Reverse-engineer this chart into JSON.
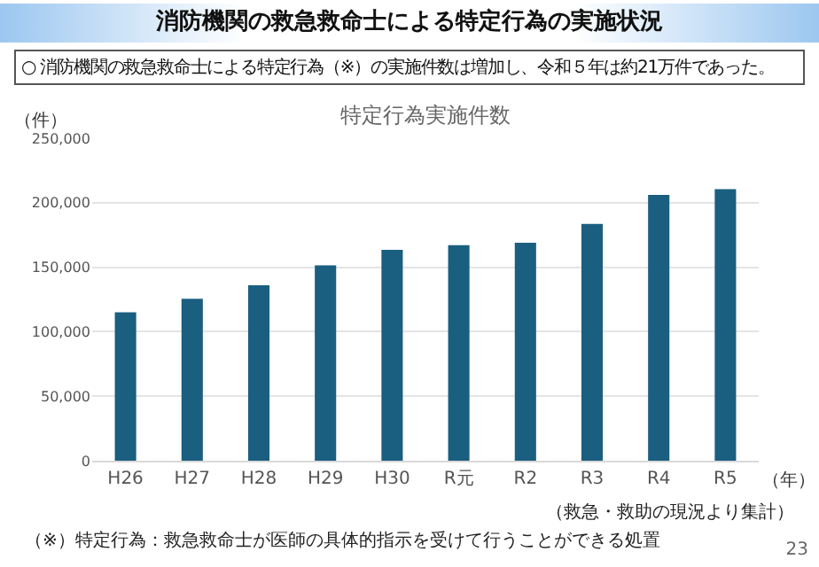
{
  "chart_data": {
    "type": "bar",
    "title": "消防機関の救急救命士による特定行為の実施状況",
    "subtitle": "○ 消防機関の救急救命士による特定行為（※）の実施件数は増加し、令和５年は約21万件であった。",
    "annotations": [
      "特定行為実施件数",
      "（救急・救助の現況より集計）",
      "（※）特定行為：救急救命士が医師の具体的指示を受けて行うことができる処置",
      "23"
    ],
    "ylabel": "（件）",
    "xlabel": "（年）",
    "categories": [
      "H26",
      "H27",
      "H28",
      "H29",
      "H30",
      "R元",
      "R2",
      "R3",
      "R4",
      "R5"
    ],
    "values": [
      115000,
      125500,
      136000,
      151500,
      163500,
      167000,
      169000,
      183500,
      206000,
      210500
    ],
    "color": "#1a5e80",
    "ylim": [
      0,
      250000
    ],
    "yticks": [
      0,
      {
        "value": 50000,
        "label": "50,000"
      },
      {
        "value": 100000,
        "label": "100,000"
      },
      {
        "value": 150000,
        "label": "150,000"
      },
      {
        "value": 200000,
        "label": "200,000"
      },
      {
        "value": 250000,
        "label": "250,000"
      }
    ],
    "grid": "y"
  }
}
